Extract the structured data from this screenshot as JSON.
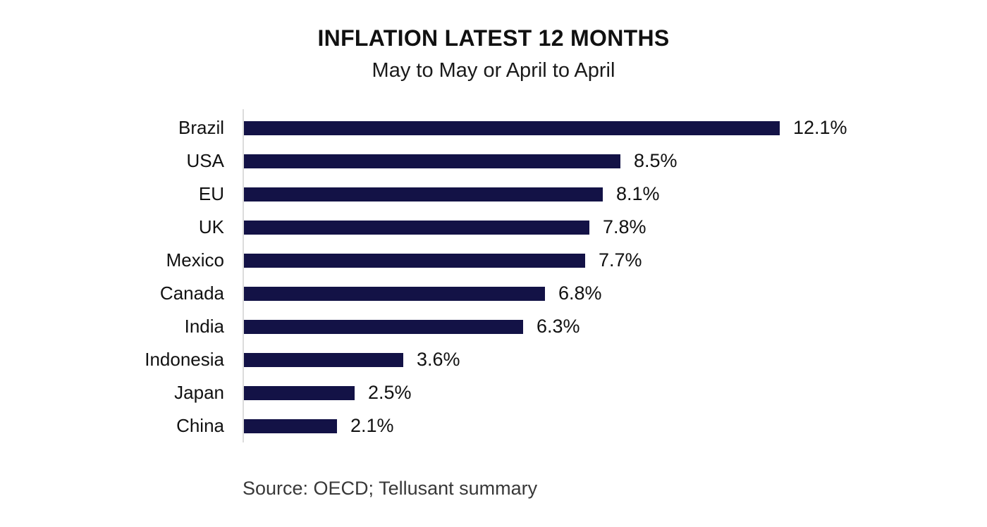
{
  "header": {
    "title": "INFLATION LATEST 12 MONTHS",
    "subtitle": "May to May or April to April"
  },
  "footer": {
    "source": "Source: OECD; Tellusant summary"
  },
  "colors": {
    "bar": "#131246",
    "axis": "#dcdcdc",
    "text": "#111111"
  },
  "chart_data": {
    "type": "bar",
    "orientation": "horizontal",
    "title": "INFLATION LATEST 12 MONTHS",
    "subtitle": "May to May or April to April",
    "categories": [
      "Brazil",
      "USA",
      "EU",
      "UK",
      "Mexico",
      "Canada",
      "India",
      "Indonesia",
      "Japan",
      "China"
    ],
    "values": [
      12.1,
      8.5,
      8.1,
      7.8,
      7.7,
      6.8,
      6.3,
      3.6,
      2.5,
      2.1
    ],
    "value_labels": [
      "12.1%",
      "8.5%",
      "8.1%",
      "7.8%",
      "7.7%",
      "6.8%",
      "6.3%",
      "3.6%",
      "2.5%",
      "2.1%"
    ],
    "xlabel": "",
    "ylabel": "",
    "xlim": [
      0,
      13
    ],
    "grid": false,
    "legend": "none",
    "data_labels_position": "outside-end",
    "source": "Source: OECD; Tellusant summary"
  }
}
